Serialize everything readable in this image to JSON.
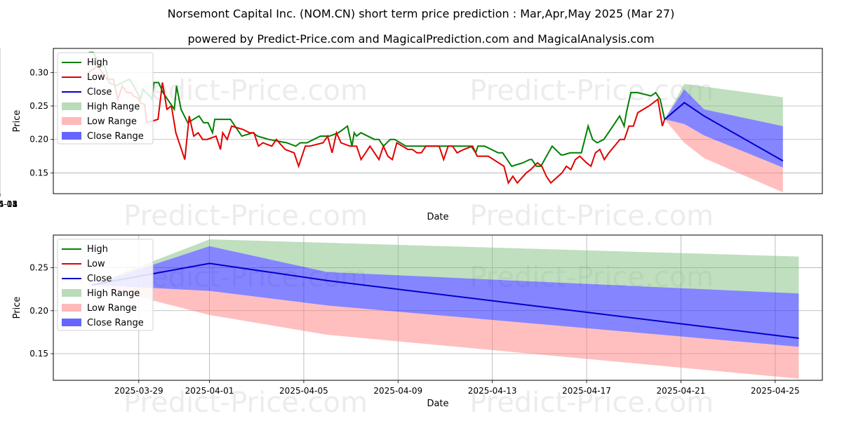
{
  "title": "Norsemont Capital Inc. (NOM.CN) short term price prediction : Mar,Apr,May 2025 (Mar 27)",
  "subtitle": "powered by Predict-Price.com and MagicalPrediction.com and MagicalAnalysis.com",
  "watermark": "Predict-Price.com",
  "colors": {
    "high": "#008000",
    "low": "#e00000",
    "close": "#0000cc",
    "high_range": "#80c080",
    "low_range": "#ff8080",
    "close_range": "#3333ff"
  },
  "chart_data": [
    {
      "type": "line",
      "xlabel": "Date",
      "ylabel": "Price",
      "xlim": [
        "2024-10-23",
        "2025-05-06"
      ],
      "ylim": [
        0.119,
        0.336
      ],
      "xticks": [
        "2024-11",
        "2024-12",
        "2025-01",
        "2025-02",
        "2025-03",
        "2025-04",
        "2025-05"
      ],
      "yticks": [
        "0.15",
        "0.20",
        "0.25",
        "0.30"
      ],
      "grid": true,
      "legend": "top-left",
      "legend_entries": [
        "High",
        "Low",
        "Close",
        "High Range",
        "Low Range",
        "Close Range"
      ],
      "history": {
        "high": [
          [
            "2024-11-01",
            0.33
          ],
          [
            "2024-11-03",
            0.33
          ],
          [
            "2024-11-06",
            0.31
          ],
          [
            "2024-11-08",
            0.31
          ],
          [
            "2024-11-10",
            0.285
          ],
          [
            "2024-11-13",
            0.28
          ],
          [
            "2024-11-16",
            0.285
          ],
          [
            "2024-11-19",
            0.29
          ],
          [
            "2024-11-21",
            0.28
          ],
          [
            "2024-11-24",
            0.26
          ],
          [
            "2024-11-25",
            0.275
          ],
          [
            "2024-11-28",
            0.265
          ],
          [
            "2024-11-29",
            0.26
          ],
          [
            "2024-11-30",
            0.285
          ],
          [
            "2024-12-02",
            0.285
          ],
          [
            "2024-12-04",
            0.27
          ],
          [
            "2024-12-09",
            0.245
          ],
          [
            "2024-12-10",
            0.28
          ],
          [
            "2024-12-12",
            0.245
          ],
          [
            "2024-12-15",
            0.225
          ],
          [
            "2024-12-20",
            0.235
          ],
          [
            "2024-12-22",
            0.225
          ],
          [
            "2024-12-24",
            0.225
          ],
          [
            "2024-12-26",
            0.21
          ],
          [
            "2024-12-27",
            0.23
          ],
          [
            "2025-01-03",
            0.23
          ],
          [
            "2025-01-05",
            0.22
          ],
          [
            "2025-01-08",
            0.205
          ],
          [
            "2025-01-13",
            0.21
          ],
          [
            "2025-01-15",
            0.205
          ],
          [
            "2025-01-20",
            0.2
          ],
          [
            "2025-01-28",
            0.195
          ],
          [
            "2025-02-01",
            0.19
          ],
          [
            "2025-02-03",
            0.195
          ],
          [
            "2025-02-06",
            0.195
          ],
          [
            "2025-02-09",
            0.2
          ],
          [
            "2025-02-12",
            0.205
          ],
          [
            "2025-02-16",
            0.205
          ],
          [
            "2025-02-20",
            0.21
          ],
          [
            "2025-02-24",
            0.22
          ],
          [
            "2025-02-26",
            0.19
          ],
          [
            "2025-02-27",
            0.21
          ],
          [
            "2025-02-28",
            0.205
          ],
          [
            "2025-03-02",
            0.21
          ],
          [
            "2025-03-08",
            0.2
          ],
          [
            "2025-03-10",
            0.2
          ],
          [
            "2025-03-12",
            0.19
          ],
          [
            "2025-03-15",
            0.2
          ],
          [
            "2025-03-17",
            0.2
          ],
          [
            "2025-03-22",
            0.19
          ],
          [
            "2025-03-24",
            0.19
          ],
          [
            "2025-03-31",
            0.19
          ],
          [
            "2025-04-20",
            0.19
          ],
          [
            "2025-04-22",
            0.18
          ],
          [
            "2025-04-23",
            0.19
          ],
          [
            "2025-04-26",
            0.19
          ],
          [
            "2025-05-02",
            0.18
          ],
          [
            "2025-05-04",
            0.18
          ],
          [
            "2025-05-08",
            0.16
          ],
          [
            "2025-05-11",
            0.163
          ],
          [
            "2025-05-13",
            0.165
          ],
          [
            "2025-05-16",
            0.17
          ],
          [
            "2025-05-17",
            0.17
          ],
          [
            "2025-05-19",
            0.16
          ],
          [
            "2025-05-21",
            0.16
          ],
          [
            "2025-05-26",
            0.19
          ],
          [
            "2025-05-29",
            0.18
          ],
          [
            "2025-05-30",
            0.177
          ],
          [
            "2025-05-31",
            0.177
          ],
          [
            "2025-06-03",
            0.18
          ],
          [
            "2025-06-08",
            0.18
          ],
          [
            "2025-06-11",
            0.22
          ],
          [
            "2025-06-13",
            0.2
          ],
          [
            "2025-06-15",
            0.195
          ],
          [
            "2025-06-18",
            0.2
          ],
          [
            "2025-06-22",
            0.22
          ],
          [
            "2025-06-25",
            0.235
          ],
          [
            "2025-06-27",
            0.22
          ],
          [
            "2025-06-28",
            0.24
          ],
          [
            "2025-06-30",
            0.27
          ],
          [
            "2025-07-03",
            0.27
          ],
          [
            "2025-07-09",
            0.265
          ],
          [
            "2025-07-11",
            0.27
          ],
          [
            "2025-07-13",
            0.26
          ],
          [
            "2025-07-15",
            0.23
          ]
        ],
        "low": [
          [
            "2024-11-01",
            0.3
          ],
          [
            "2024-11-03",
            0.305
          ],
          [
            "2024-11-05",
            0.31
          ],
          [
            "2024-11-07",
            0.3
          ],
          [
            "2024-11-09",
            0.29
          ],
          [
            "2024-11-12",
            0.29
          ],
          [
            "2024-11-14",
            0.26
          ],
          [
            "2024-11-16",
            0.28
          ],
          [
            "2024-11-18",
            0.27
          ],
          [
            "2024-11-20",
            0.27
          ],
          [
            "2024-11-21",
            0.265
          ],
          [
            "2024-11-23",
            0.262
          ],
          [
            "2024-11-24",
            0.255
          ],
          [
            "2024-11-26",
            0.252
          ],
          [
            "2024-11-27",
            0.225
          ],
          [
            "2024-11-30",
            0.228
          ],
          [
            "2024-12-02",
            0.23
          ],
          [
            "2024-12-04",
            0.285
          ],
          [
            "2024-12-06",
            0.245
          ],
          [
            "2024-12-08",
            0.25
          ],
          [
            "2024-12-10",
            0.21
          ],
          [
            "2024-12-14",
            0.17
          ],
          [
            "2024-12-16",
            0.235
          ],
          [
            "2024-12-18",
            0.205
          ],
          [
            "2024-12-20",
            0.21
          ],
          [
            "2024-12-22",
            0.2
          ],
          [
            "2024-12-24",
            0.2
          ],
          [
            "2024-12-28",
            0.205
          ],
          [
            "2024-12-30",
            0.185
          ],
          [
            "2024-12-31",
            0.21
          ],
          [
            "2025-01-02",
            0.2
          ],
          [
            "2025-01-04",
            0.22
          ],
          [
            "2025-01-09",
            0.215
          ],
          [
            "2025-01-12",
            0.21
          ],
          [
            "2025-01-14",
            0.21
          ],
          [
            "2025-01-16",
            0.19
          ],
          [
            "2025-01-18",
            0.195
          ],
          [
            "2025-01-22",
            0.19
          ],
          [
            "2025-01-24",
            0.2
          ],
          [
            "2025-01-28",
            0.185
          ],
          [
            "2025-02-01",
            0.18
          ],
          [
            "2025-02-03",
            0.16
          ],
          [
            "2025-02-06",
            0.19
          ],
          [
            "2025-02-08",
            0.19
          ],
          [
            "2025-02-14",
            0.195
          ],
          [
            "2025-02-16",
            0.205
          ],
          [
            "2025-02-18",
            0.18
          ],
          [
            "2025-02-20",
            0.21
          ],
          [
            "2025-02-22",
            0.195
          ],
          [
            "2025-02-26",
            0.19
          ],
          [
            "2025-03-01",
            0.19
          ],
          [
            "2025-03-03",
            0.17
          ],
          [
            "2025-03-07",
            0.19
          ],
          [
            "2025-03-09",
            0.18
          ],
          [
            "2025-03-11",
            0.17
          ],
          [
            "2025-03-13",
            0.19
          ],
          [
            "2025-03-15",
            0.175
          ],
          [
            "2025-03-17",
            0.17
          ],
          [
            "2025-03-19",
            0.195
          ],
          [
            "2025-03-24",
            0.185
          ],
          [
            "2025-03-26",
            0.185
          ],
          [
            "2025-03-28",
            0.18
          ],
          [
            "2025-03-30",
            0.18
          ],
          [
            "2025-04-01",
            0.19
          ],
          [
            "2025-04-07",
            0.19
          ],
          [
            "2025-04-09",
            0.17
          ],
          [
            "2025-04-11",
            0.19
          ],
          [
            "2025-04-13",
            0.19
          ],
          [
            "2025-04-15",
            0.18
          ],
          [
            "2025-04-18",
            0.185
          ],
          [
            "2025-04-22",
            0.19
          ],
          [
            "2025-04-24",
            0.175
          ],
          [
            "2025-04-29",
            0.175
          ],
          [
            "2025-05-06",
            0.16
          ],
          [
            "2025-05-08",
            0.135
          ],
          [
            "2025-05-10",
            0.145
          ],
          [
            "2025-05-12",
            0.135
          ],
          [
            "2025-05-16",
            0.15
          ],
          [
            "2025-05-18",
            0.155
          ],
          [
            "2025-05-21",
            0.165
          ],
          [
            "2025-05-23",
            0.16
          ],
          [
            "2025-05-25",
            0.145
          ],
          [
            "2025-05-27",
            0.135
          ],
          [
            "2025-06-01",
            0.15
          ],
          [
            "2025-06-03",
            0.16
          ],
          [
            "2025-06-05",
            0.155
          ],
          [
            "2025-06-07",
            0.17
          ],
          [
            "2025-06-09",
            0.175
          ],
          [
            "2025-06-12",
            0.165
          ],
          [
            "2025-06-14",
            0.16
          ],
          [
            "2025-06-16",
            0.18
          ],
          [
            "2025-06-18",
            0.185
          ],
          [
            "2025-06-20",
            0.17
          ],
          [
            "2025-06-22",
            0.18
          ],
          [
            "2025-06-27",
            0.2
          ],
          [
            "2025-06-29",
            0.2
          ],
          [
            "2025-07-01",
            0.22
          ],
          [
            "2025-07-03",
            0.22
          ],
          [
            "2025-07-05",
            0.24
          ],
          [
            "2025-07-10",
            0.25
          ],
          [
            "2025-07-14",
            0.26
          ],
          [
            "2025-07-16",
            0.22
          ],
          [
            "2025-07-17",
            0.23
          ]
        ],
        "close": []
      },
      "forecast": {
        "dates": [
          "2025-03-27",
          "2025-04-01",
          "2025-04-06",
          "2025-04-26"
        ],
        "high_range": {
          "upper": [
            0.23,
            0.283,
            0.279,
            0.263
          ],
          "lower": [
            0.23,
            0.275,
            0.245,
            0.22
          ]
        },
        "close_range": {
          "upper": [
            0.23,
            0.275,
            0.245,
            0.22
          ],
          "lower": [
            0.23,
            0.223,
            0.206,
            0.158
          ]
        },
        "low_range": {
          "upper": [
            0.23,
            0.223,
            0.206,
            0.158
          ],
          "lower": [
            0.23,
            0.195,
            0.172,
            0.121
          ]
        },
        "close": [
          0.23,
          0.255,
          0.235,
          0.168
        ]
      }
    },
    {
      "type": "line",
      "xlabel": "Date",
      "ylabel": "Price",
      "xlim": [
        "2025-03-25 09:00",
        "2025-04-27 00:00"
      ],
      "ylim": [
        0.119,
        0.288
      ],
      "xticks": [
        "2025-03-29",
        "2025-04-01",
        "2025-04-05",
        "2025-04-09",
        "2025-04-13",
        "2025-04-17",
        "2025-04-21",
        "2025-04-25"
      ],
      "yticks": [
        "0.15",
        "0.20",
        "0.25"
      ],
      "grid": true,
      "legend": "top-left",
      "legend_entries": [
        "High",
        "Low",
        "Close",
        "High Range",
        "Low Range",
        "Close Range"
      ]
    }
  ]
}
